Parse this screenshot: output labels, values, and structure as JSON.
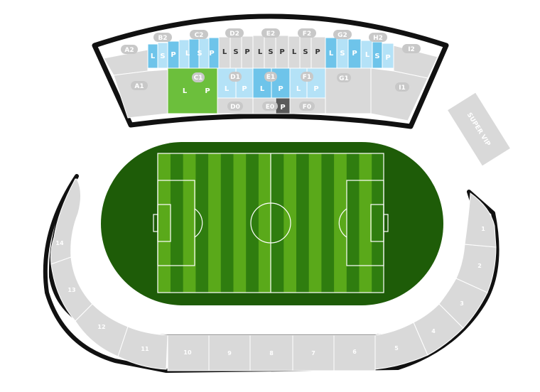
{
  "colors": {
    "grey": "#d9d9d9",
    "light_blue": "#b4e2f7",
    "mid_blue": "#6ec4ea",
    "green_section": "#6cbf3c",
    "dark_p": "#5a5a5a",
    "pitch_dark": "#2f7d0f",
    "pitch_light": "#5aa91a",
    "field_oval": "#1e5c08",
    "border": "#111111"
  },
  "upper_labels": {
    "a2": "A2",
    "b2": "B2",
    "c2": "C2",
    "d2": "D2",
    "e2": "E2",
    "f2": "F2",
    "g2": "G2",
    "h2": "H2",
    "i2": "I2"
  },
  "lower_labels": {
    "a1": "A1",
    "c1": "C1",
    "d1": "D1",
    "e1": "E1",
    "f1": "F1",
    "g1": "G1",
    "i1": "I1",
    "d0": "D0",
    "e0": "E0",
    "f0": "F0"
  },
  "letters": {
    "l": "L",
    "s": "S",
    "p": "P"
  },
  "super_vip": "SUPER VIP",
  "sections": {
    "s1": "1",
    "s2": "2",
    "s3": "3",
    "s4": "4",
    "s5": "5",
    "s6": "6",
    "s7": "7",
    "s8": "8",
    "s9": "9",
    "s10": "10",
    "s11": "11",
    "s12": "12",
    "s13": "13",
    "s14": "14"
  }
}
